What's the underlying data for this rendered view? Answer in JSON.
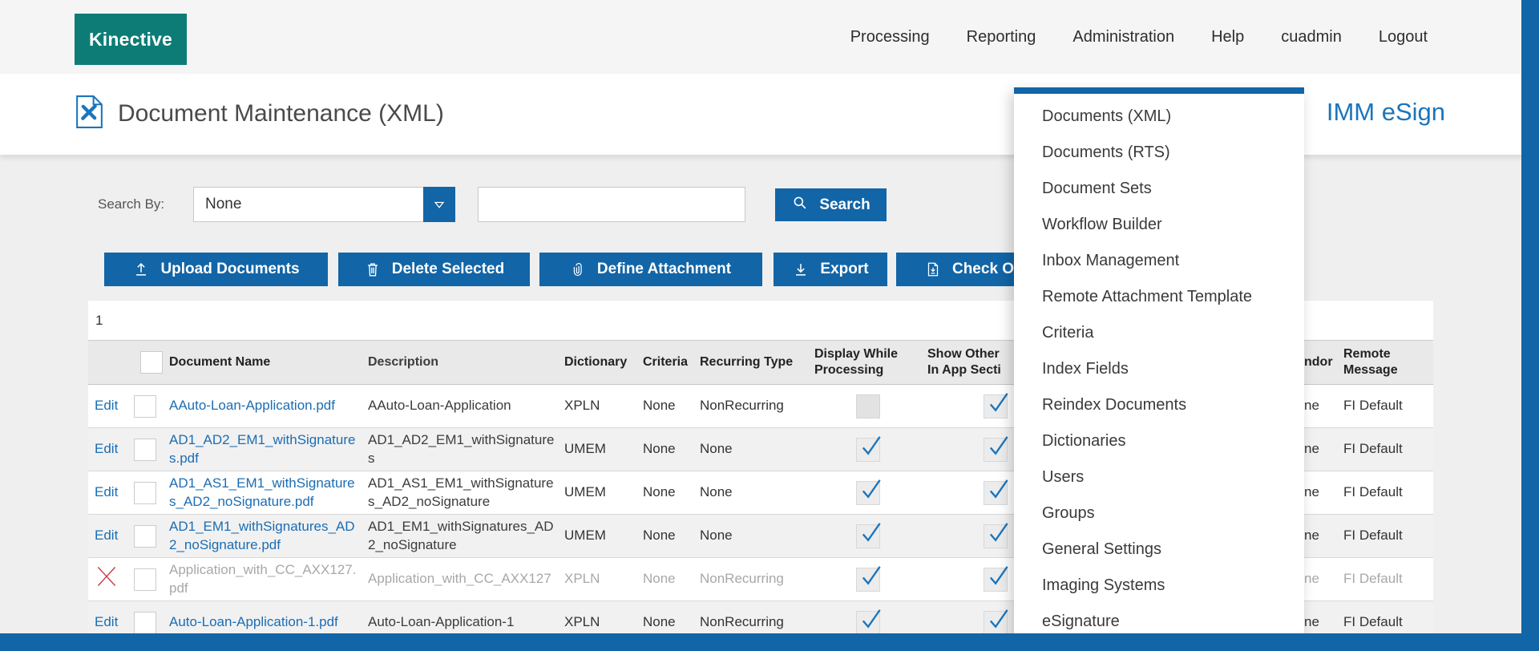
{
  "brand": {
    "logo_text": "Kinective"
  },
  "nav": {
    "items": [
      "Processing",
      "Reporting",
      "Administration",
      "Help",
      "cuadmin",
      "Logout"
    ]
  },
  "header": {
    "title": "Document Maintenance (XML)",
    "title_icon": "document-tools-icon",
    "product": "IMM eSign"
  },
  "search": {
    "label": "Search By:",
    "selected_option": "None",
    "caret_icon": "caret-down-icon",
    "input_value": "",
    "button_label": "Search",
    "button_icon": "search-icon"
  },
  "toolbar": {
    "buttons": [
      {
        "id": "upload-documents",
        "icon": "upload-icon",
        "label": "Upload Documents"
      },
      {
        "id": "delete-selected",
        "icon": "trash-icon",
        "label": "Delete Selected"
      },
      {
        "id": "define-attachment",
        "icon": "paperclip-icon",
        "label": "Define Attachment"
      },
      {
        "id": "export",
        "icon": "export-icon",
        "label": "Export"
      },
      {
        "id": "check-out",
        "icon": "checkout-icon",
        "label": "Check Out"
      }
    ]
  },
  "pagination": {
    "current_page": "1"
  },
  "table": {
    "columns": [
      {
        "key": "edit",
        "label": ""
      },
      {
        "key": "select",
        "label": ""
      },
      {
        "key": "name",
        "label": "Document Name"
      },
      {
        "key": "description",
        "label": "Description"
      },
      {
        "key": "dictionary",
        "label": "Dictionary"
      },
      {
        "key": "criteria",
        "label": "Criteria"
      },
      {
        "key": "recurring",
        "label": "Recurring Type"
      },
      {
        "key": "display_while_processing",
        "label_lines": [
          "Display While",
          "Processing"
        ]
      },
      {
        "key": "show_other",
        "label_lines": [
          "Show Other",
          "In App Secti"
        ]
      },
      {
        "key": "hidden",
        "label": ""
      },
      {
        "key": "vendor_fragment",
        "label": "ndor"
      },
      {
        "key": "remote_message",
        "label_lines": [
          "Remote",
          "Message"
        ]
      }
    ],
    "rows": [
      {
        "action": "edit",
        "action_label": "Edit",
        "name": "AAuto-Loan-Application.pdf",
        "description": "AAuto-Loan-Application",
        "dictionary": "XPLN",
        "criteria": "None",
        "recurring": "NonRecurring",
        "display_while_processing": "disabled",
        "show_other": "checked",
        "vendor_fragment": "ne",
        "remote_message": "FI Default",
        "grayed": false
      },
      {
        "action": "edit",
        "action_label": "Edit",
        "name": "AD1_AD2_EM1_withSignatures.pdf",
        "description": "AD1_AD2_EM1_withSignatures",
        "dictionary": "UMEM",
        "criteria": "None",
        "recurring": "None",
        "display_while_processing": "checked",
        "show_other": "checked",
        "vendor_fragment": "ne",
        "remote_message": "FI Default",
        "grayed": false
      },
      {
        "action": "edit",
        "action_label": "Edit",
        "name": "AD1_AS1_EM1_withSignatures_AD2_noSignature.pdf",
        "description": "AD1_AS1_EM1_withSignatures_AD2_noSignature",
        "dictionary": "UMEM",
        "criteria": "None",
        "recurring": "None",
        "display_while_processing": "checked",
        "show_other": "checked",
        "vendor_fragment": "ne",
        "remote_message": "FI Default",
        "grayed": false
      },
      {
        "action": "edit",
        "action_label": "Edit",
        "name": "AD1_EM1_withSignatures_AD2_noSignature.pdf",
        "description": "AD1_EM1_withSignatures_AD2_noSignature",
        "dictionary": "UMEM",
        "criteria": "None",
        "recurring": "None",
        "display_while_processing": "checked",
        "show_other": "checked",
        "vendor_fragment": "ne",
        "remote_message": "FI Default",
        "grayed": false
      },
      {
        "action": "delete-x",
        "action_label": "",
        "name": "Application_with_CC_AXX127.pdf",
        "description": "Application_with_CC_AXX127",
        "dictionary": "XPLN",
        "criteria": "None",
        "recurring": "NonRecurring",
        "display_while_processing": "checked",
        "show_other": "checked",
        "vendor_fragment": "ne",
        "remote_message": "FI Default",
        "grayed": true
      },
      {
        "action": "edit",
        "action_label": "Edit",
        "name": "Auto-Loan-Application-1.pdf",
        "description": "Auto-Loan-Application-1",
        "dictionary": "XPLN",
        "criteria": "None",
        "recurring": "NonRecurring",
        "display_while_processing": "checked",
        "show_other": "checked",
        "vendor_fragment": "ne",
        "remote_message": "FI Default",
        "grayed": false
      }
    ]
  },
  "admin_menu": {
    "items": [
      "Documents (XML)",
      "Documents (RTS)",
      "Document Sets",
      "Workflow Builder",
      "Inbox Management",
      "Remote Attachment Template",
      "Criteria",
      "Index Fields",
      "Reindex Documents",
      "Dictionaries",
      "Users",
      "Groups",
      "General Settings",
      "Imaging Systems",
      "eSignature"
    ]
  },
  "colors": {
    "accent_blue": "#1265a7",
    "brand_teal": "#0d7c76",
    "link_blue": "#1b6db3",
    "product_blue": "#1b75bc",
    "check_blue": "#1b75bc",
    "delete_red": "#c43b45",
    "nav_bg": "#f5f5f5",
    "page_bg": "#efefef",
    "table_header_bg": "#e9e9e9",
    "row_alt_bg": "#f1f1f1"
  }
}
